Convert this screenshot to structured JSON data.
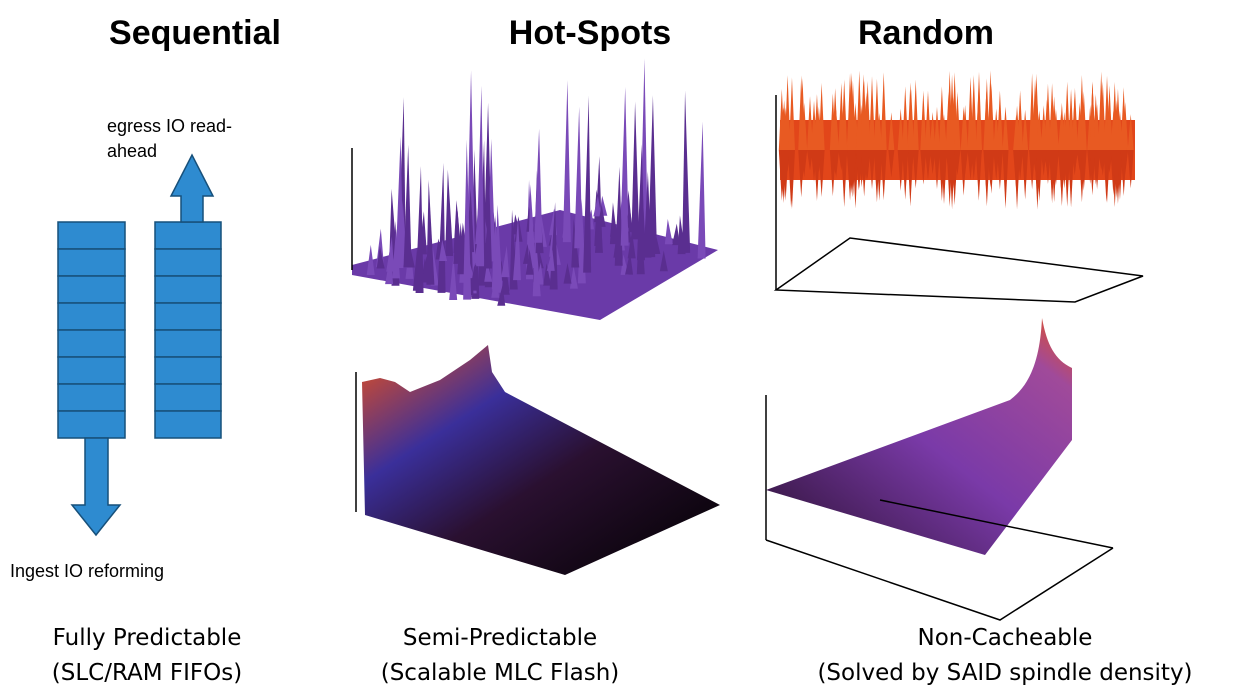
{
  "columns": [
    {
      "title": "Sequential",
      "caption": [
        "Fully Predictable",
        "(SLC/RAM FIFOs)"
      ]
    },
    {
      "title": "Hot-Spots",
      "caption": [
        "Semi-Predictable",
        "(Scalable MLC Flash)"
      ]
    },
    {
      "title": "Random",
      "caption": [
        "Non-Cacheable",
        "(Solved by SAID spindle density)"
      ]
    }
  ],
  "labels": {
    "egress": [
      "egress IO read-",
      "ahead"
    ],
    "ingest": "Ingest IO reforming"
  }
}
